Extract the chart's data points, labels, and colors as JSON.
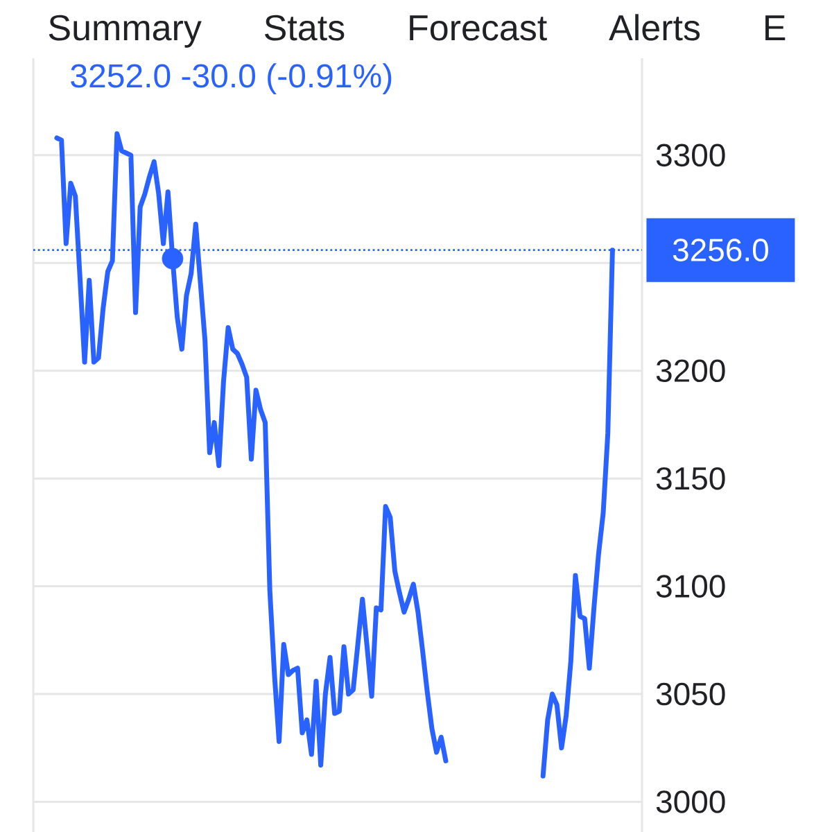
{
  "chart_data": {
    "type": "line",
    "annotations": [
      "Summary",
      "Stats",
      "Forecast",
      "Alerts",
      "E",
      "3252.0 -30.0 (-0.91%)"
    ],
    "categories": [
      null,
      null,
      null,
      null,
      null,
      null,
      null,
      null,
      null,
      null,
      null,
      null,
      null,
      null,
      null,
      null,
      null,
      null,
      null,
      null,
      null,
      null,
      null,
      null,
      null,
      null,
      null,
      null,
      null,
      null,
      null,
      null,
      null,
      null,
      null,
      null,
      null,
      null,
      null,
      null,
      null,
      null,
      null,
      null,
      null,
      null,
      null,
      null,
      null,
      null,
      null,
      null,
      null,
      null,
      null,
      null,
      null,
      null,
      null,
      null,
      null,
      null,
      null,
      null,
      null,
      null,
      null,
      null,
      null,
      null,
      null,
      null,
      null,
      null,
      null,
      null,
      null,
      null,
      null,
      null,
      null,
      null,
      null,
      null,
      null,
      null,
      null,
      null,
      null,
      null,
      null,
      null,
      null,
      null,
      null,
      null,
      null,
      null,
      null,
      null,
      null,
      null,
      null,
      null,
      null,
      null,
      null,
      null,
      null,
      null,
      null,
      null,
      null,
      null,
      null,
      null,
      null,
      null,
      null,
      null,
      null
    ],
    "series": [
      {
        "color": "#2962ff",
        "line_style": "solid",
        "values": [
          3308,
          3307,
          3259,
          3287,
          3281,
          3243,
          3204,
          3242,
          3204,
          3206,
          3229,
          3246,
          3251,
          3310,
          3302,
          3301,
          3300,
          3227,
          3276,
          3282,
          3290,
          3297,
          3282,
          3259,
          3283,
          3252,
          3225,
          3210,
          3235,
          3245,
          3268,
          3241,
          3214,
          3162,
          3176,
          3156,
          3195,
          3220,
          3210,
          3208,
          3203,
          3197,
          3159,
          3191,
          3182,
          3176,
          3098,
          3059,
          3028,
          3073,
          3059,
          3061,
          3062,
          3032,
          3038,
          3022,
          3056,
          3017,
          3050,
          3067,
          3041,
          3042,
          3072,
          3050,
          3052,
          3073,
          3094,
          3072,
          3049,
          3090,
          3089,
          3137,
          3132,
          3107,
          3097,
          3088,
          3094,
          3101,
          3088,
          3070,
          3051,
          3034,
          3023,
          3030,
          3019,
          null,
          null,
          null,
          null,
          null,
          null,
          null,
          null,
          null,
          null,
          null,
          null,
          null,
          null,
          null,
          null,
          null,
          null,
          null,
          null,
          null,
          null,
          null,
          null,
          null,
          null,
          null,
          null,
          null,
          null,
          null,
          null,
          null,
          null,
          null,
          null
        ]
      },
      {
        "color": "#2962ff",
        "line_style": "solid",
        "values": [
          null,
          null,
          null,
          null,
          null,
          null,
          null,
          null,
          null,
          null,
          null,
          null,
          null,
          null,
          null,
          null,
          null,
          null,
          null,
          null,
          null,
          null,
          null,
          null,
          null,
          null,
          null,
          null,
          null,
          null,
          null,
          null,
          null,
          null,
          null,
          null,
          null,
          null,
          null,
          null,
          null,
          null,
          null,
          null,
          null,
          null,
          null,
          null,
          null,
          null,
          null,
          null,
          null,
          null,
          null,
          null,
          null,
          null,
          null,
          null,
          null,
          null,
          null,
          null,
          null,
          null,
          null,
          null,
          null,
          null,
          null,
          null,
          null,
          null,
          null,
          null,
          null,
          null,
          null,
          null,
          null,
          null,
          null,
          null,
          null,
          null,
          null,
          null,
          null,
          null,
          null,
          null,
          null,
          null,
          null,
          null,
          null,
          null,
          null,
          null,
          null,
          null,
          null,
          null,
          null,
          3012,
          3038,
          3050,
          3045,
          3025,
          3040,
          3065,
          3105,
          3086,
          3085,
          3062,
          3090,
          3115,
          3134,
          3171,
          3256
        ]
      },
      {
        "type": "scatter",
        "color": "#2962ff",
        "marker": "circle",
        "values": [
          null,
          null,
          null,
          null,
          null,
          null,
          null,
          null,
          null,
          null,
          null,
          null,
          null,
          null,
          null,
          null,
          null,
          null,
          null,
          null,
          null,
          null,
          null,
          null,
          null,
          3252,
          null,
          null,
          null,
          null,
          null,
          null,
          null,
          null,
          null,
          null,
          null,
          null,
          null,
          null,
          null,
          null,
          null,
          null,
          null,
          null,
          null,
          null,
          null,
          null,
          null,
          null,
          null,
          null,
          null,
          null,
          null,
          null,
          null,
          null,
          null,
          null,
          null,
          null,
          null,
          null,
          null,
          null,
          null,
          null,
          null,
          null,
          null,
          null,
          null,
          null,
          null,
          null,
          null,
          null,
          null,
          null,
          null,
          null,
          null,
          null,
          null,
          null,
          null,
          null,
          null,
          null,
          null,
          null,
          null,
          null,
          null,
          null,
          null,
          null,
          null,
          null,
          null,
          null,
          null,
          null,
          null,
          null,
          null,
          null,
          null,
          null,
          null,
          null,
          null,
          null,
          null,
          null,
          null,
          null,
          null
        ]
      }
    ],
    "ylim": [
      2986,
      3345
    ],
    "yticks": [
      3000,
      3050,
      3100,
      3150,
      3200,
      {
        "value": 3250,
        "label": null
      },
      3300
    ],
    "grid": "y",
    "tick_labels": "y",
    "ref_lines": [
      {
        "axis": "y",
        "value": 3256,
        "label": "3256.0",
        "color": "#2962ff",
        "line_style": "dotted"
      }
    ]
  }
}
